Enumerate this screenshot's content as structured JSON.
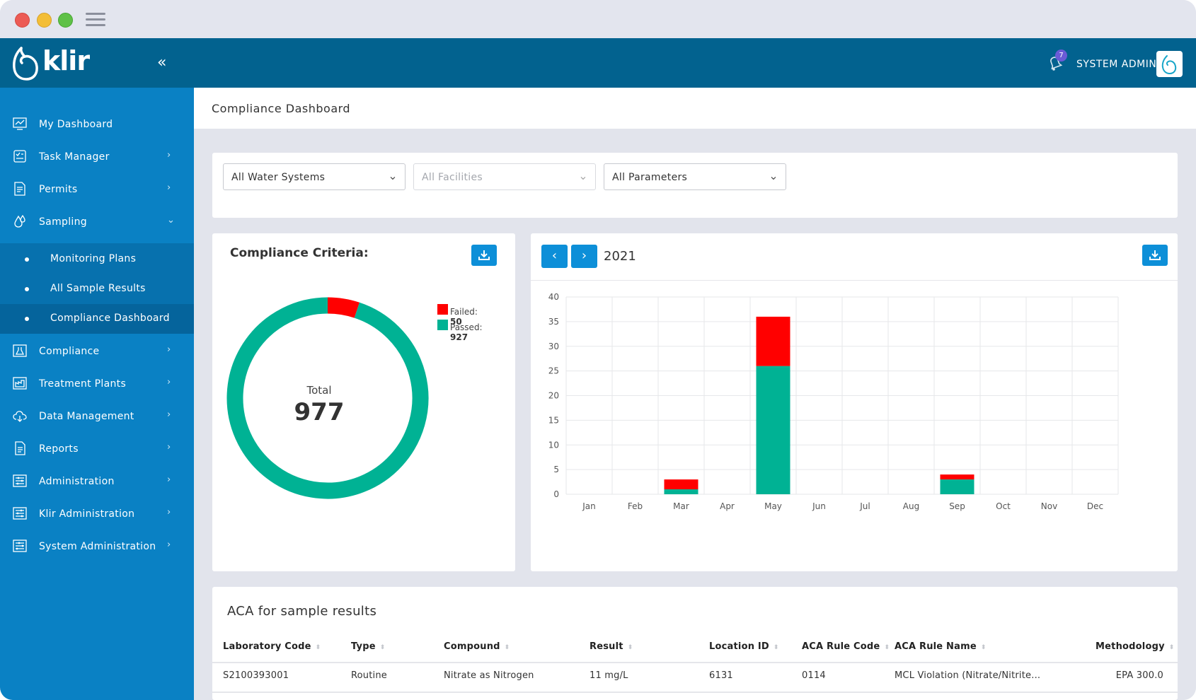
{
  "app": {
    "name": "klir"
  },
  "header": {
    "user": "SYSTEM ADMIN",
    "notification_count": "7"
  },
  "sidebar": {
    "items": [
      {
        "label": "My Dashboard"
      },
      {
        "label": "Task Manager"
      },
      {
        "label": "Permits"
      },
      {
        "label": "Sampling"
      },
      {
        "label": "Compliance"
      },
      {
        "label": "Treatment Plants"
      },
      {
        "label": "Data Management"
      },
      {
        "label": "Reports"
      },
      {
        "label": "Administration"
      },
      {
        "label": "Klir Administration"
      },
      {
        "label": "System Administration"
      }
    ],
    "sub_items": [
      {
        "label": "Monitoring Plans"
      },
      {
        "label": "All Sample Results"
      },
      {
        "label": "Compliance Dashboard"
      }
    ]
  },
  "page": {
    "title": "Compliance Dashboard"
  },
  "filters": {
    "water_systems": "All Water Systems",
    "facilities": "All Facilities",
    "parameters": "All Parameters"
  },
  "criteria": {
    "title": "Compliance Criteria:",
    "total_label": "Total",
    "total": "977",
    "failed_label": "Failed:",
    "failed": "50",
    "passed_label": "Passed:",
    "passed": "927",
    "failed_color": "#ff0000",
    "passed_color": "#00b294"
  },
  "monthly": {
    "year": "2021"
  },
  "chart_data": [
    {
      "type": "pie",
      "title": "Compliance Criteria:",
      "categories": [
        "Failed",
        "Passed"
      ],
      "values": [
        50,
        927
      ],
      "center_label": "Total",
      "center_value": 977
    },
    {
      "type": "bar",
      "title": "2021",
      "categories": [
        "Jan",
        "Feb",
        "Mar",
        "Apr",
        "May",
        "Jun",
        "Jul",
        "Aug",
        "Sep",
        "Oct",
        "Nov",
        "Dec"
      ],
      "series": [
        {
          "name": "Passed",
          "color": "#00b294",
          "values": [
            0,
            0,
            1,
            0,
            26,
            0,
            0,
            0,
            3,
            0,
            0,
            0
          ]
        },
        {
          "name": "Failed",
          "color": "#ff0000",
          "values": [
            0,
            0,
            2,
            0,
            10,
            0,
            0,
            0,
            1,
            0,
            0,
            0
          ]
        }
      ],
      "stacked": true,
      "ylim": [
        0,
        40
      ],
      "yticks": [
        0,
        5,
        10,
        15,
        20,
        25,
        30,
        35,
        40
      ],
      "xlabel": "",
      "ylabel": ""
    }
  ],
  "table": {
    "title": "ACA for sample results",
    "columns": [
      "Laboratory Code",
      "Type",
      "Compound",
      "Result",
      "Location ID",
      "ACA Rule Code",
      "ACA Rule Name",
      "Methodology"
    ],
    "rows": [
      [
        "S2100393001",
        "Routine",
        "Nitrate as Nitrogen",
        "11 mg/L",
        "6131",
        "0114",
        "MCL Violation (Nitrate/Nitrite...",
        "EPA 300.0"
      ]
    ]
  }
}
